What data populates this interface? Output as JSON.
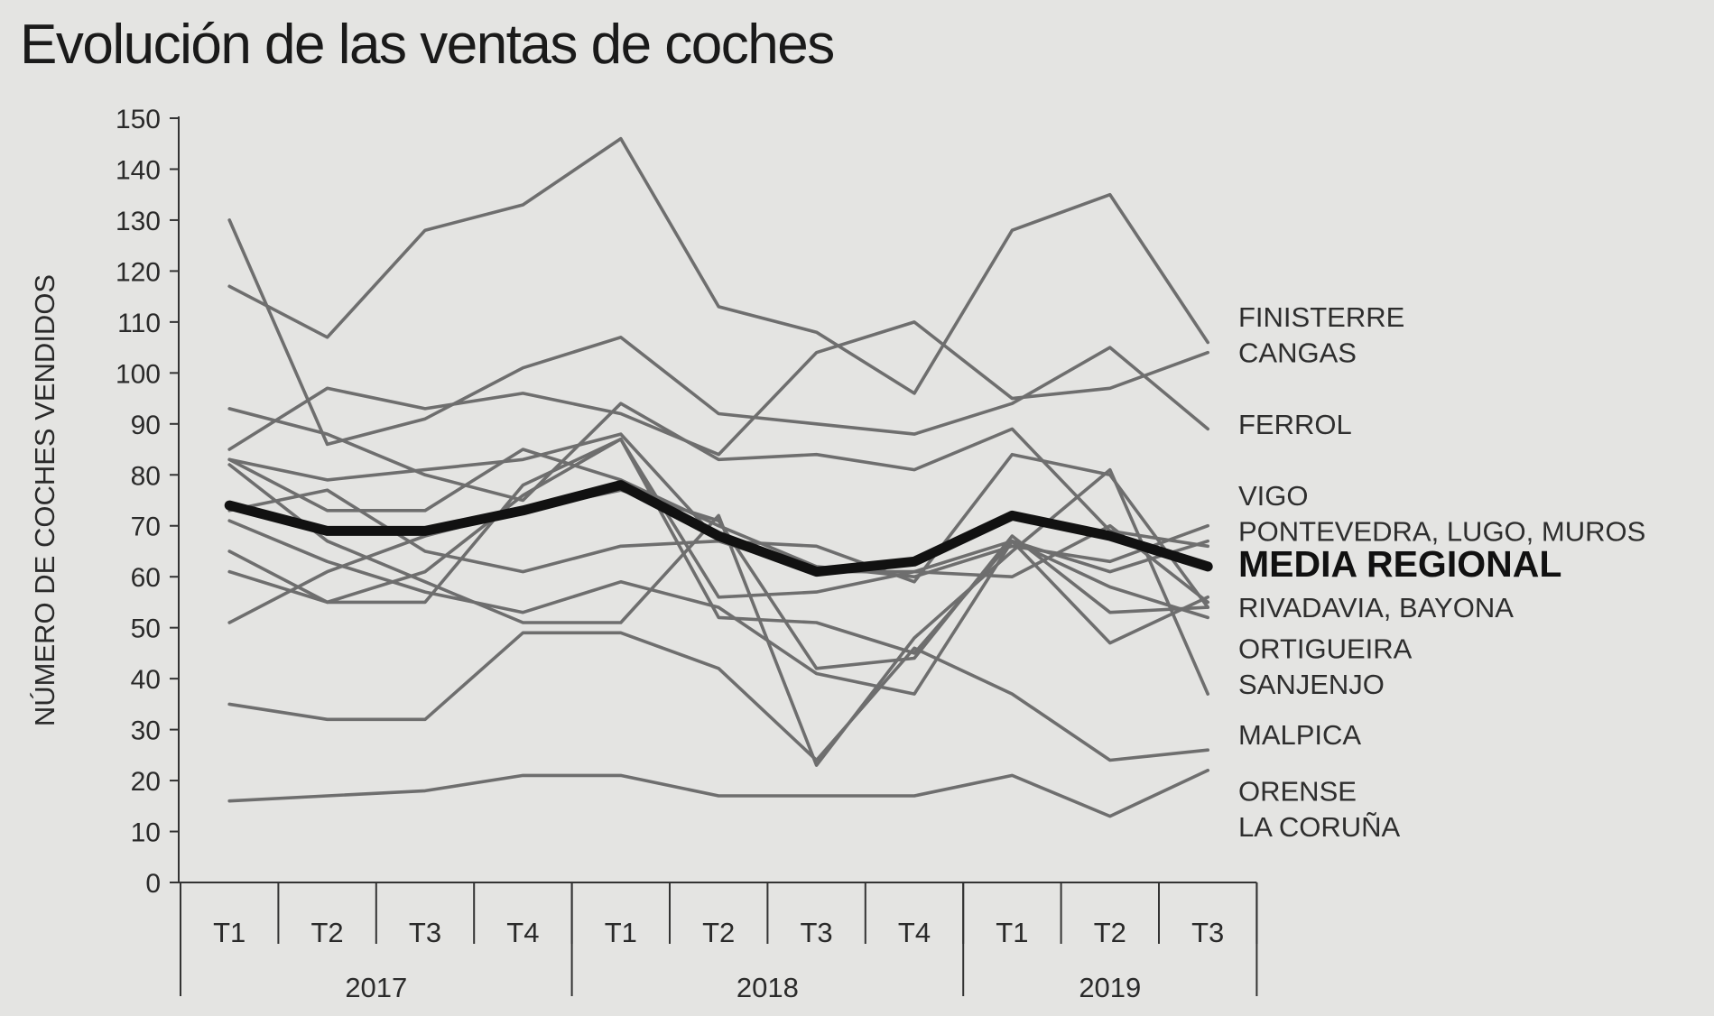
{
  "chart_data": {
    "type": "line",
    "title": "Evolución de las ventas de coches",
    "ylabel": "NÚMERO DE COCHES VENDIDOS",
    "ylim": [
      0,
      150
    ],
    "yticks": [
      0,
      10,
      20,
      30,
      40,
      50,
      60,
      70,
      80,
      90,
      100,
      110,
      120,
      130,
      140,
      150
    ],
    "categories": [
      "T1",
      "T2",
      "T3",
      "T4",
      "T1",
      "T2",
      "T3",
      "T4",
      "T1",
      "T2",
      "T3"
    ],
    "year_groups": [
      {
        "label": "2017",
        "span": 4
      },
      {
        "label": "2018",
        "span": 4
      },
      {
        "label": "2019",
        "span": 3
      }
    ],
    "right_labels": [
      {
        "text": "FINISTERRE",
        "value": 111,
        "emphasis": false
      },
      {
        "text": "CANGAS",
        "value": 104,
        "emphasis": false
      },
      {
        "text": "FERROL",
        "value": 90,
        "emphasis": false
      },
      {
        "text": "VIGO",
        "value": 76,
        "emphasis": false
      },
      {
        "text": "PONTEVEDRA, LUGO, MUROS",
        "value": 69,
        "emphasis": false
      },
      {
        "text": "MEDIA REGIONAL",
        "value": 62,
        "emphasis": true
      },
      {
        "text": "RIVADAVIA, BAYONA",
        "value": 54,
        "emphasis": false
      },
      {
        "text": "ORTIGUEIRA",
        "value": 46,
        "emphasis": false
      },
      {
        "text": "SANJENJO",
        "value": 39,
        "emphasis": false
      },
      {
        "text": "MALPICA",
        "value": 29,
        "emphasis": false
      },
      {
        "text": "ORENSE",
        "value": 18,
        "emphasis": false
      },
      {
        "text": "LA CORUÑA",
        "value": 11,
        "emphasis": false
      }
    ],
    "series": [
      {
        "values": [
          117,
          107,
          128,
          133,
          146,
          113,
          108,
          96,
          128,
          135,
          106
        ],
        "emphasis": false
      },
      {
        "values": [
          130,
          86,
          91,
          101,
          107,
          92,
          90,
          88,
          94,
          105,
          89
        ],
        "emphasis": false
      },
      {
        "values": [
          85,
          97,
          93,
          96,
          92,
          84,
          104,
          110,
          95,
          97,
          104
        ],
        "emphasis": false
      },
      {
        "values": [
          93,
          88,
          80,
          75,
          94,
          83,
          84,
          81,
          89,
          69,
          66
        ],
        "emphasis": false
      },
      {
        "values": [
          83,
          79,
          81,
          83,
          88,
          67,
          66,
          59,
          84,
          80,
          54
        ],
        "emphasis": false
      },
      {
        "values": [
          83,
          73,
          73,
          85,
          79,
          70,
          62,
          60,
          66,
          63,
          70
        ],
        "emphasis": false
      },
      {
        "values": [
          73,
          77,
          65,
          61,
          66,
          67,
          61,
          61,
          60,
          70,
          55
        ],
        "emphasis": false
      },
      {
        "values": [
          61,
          55,
          61,
          76,
          87,
          52,
          51,
          45,
          67,
          61,
          67
        ],
        "emphasis": false
      },
      {
        "values": [
          65,
          55,
          55,
          78,
          87,
          56,
          57,
          61,
          67,
          58,
          52
        ],
        "emphasis": false
      },
      {
        "values": [
          51,
          61,
          68,
          73,
          77,
          71,
          42,
          44,
          68,
          53,
          54
        ],
        "emphasis": false
      },
      {
        "values": [
          71,
          63,
          57,
          53,
          59,
          54,
          41,
          37,
          67,
          47,
          56
        ],
        "emphasis": false
      },
      {
        "values": [
          82,
          67,
          59,
          51,
          51,
          72,
          23,
          48,
          65,
          81,
          37
        ],
        "emphasis": false
      },
      {
        "values": [
          35,
          32,
          32,
          49,
          49,
          42,
          24,
          46,
          37,
          24,
          26
        ],
        "emphasis": false
      },
      {
        "values": [
          16,
          17,
          18,
          21,
          21,
          17,
          17,
          17,
          21,
          13,
          22
        ],
        "emphasis": false
      },
      {
        "name": "MEDIA REGIONAL",
        "values": [
          74,
          69,
          69,
          73,
          78,
          68,
          61,
          63,
          72,
          68,
          62
        ],
        "emphasis": true
      }
    ],
    "grid": false,
    "colors": {
      "series": "#6e6e6e",
      "average": "#111111",
      "axis": "#333333"
    }
  }
}
